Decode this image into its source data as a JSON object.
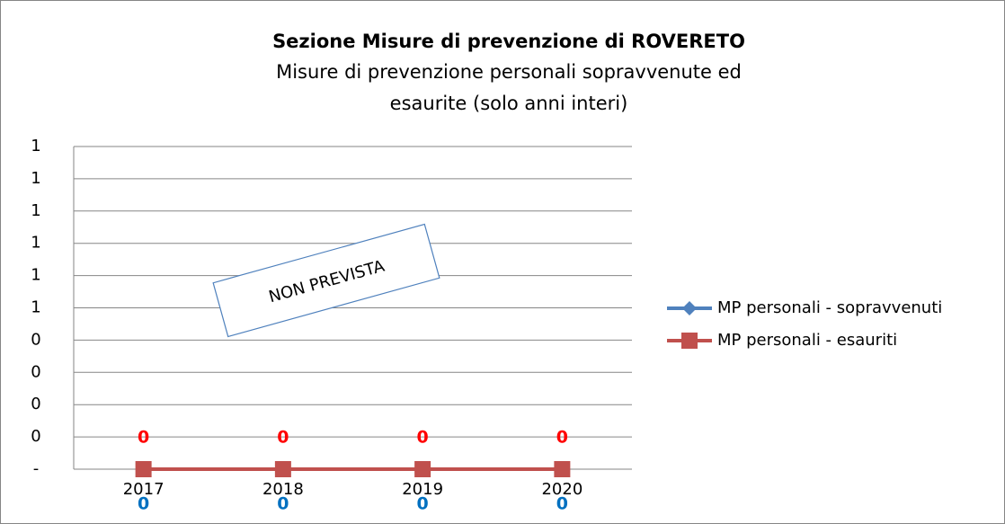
{
  "chart_data": {
    "type": "line",
    "title": "Sezione Misure di prevenzione di ROVERETO",
    "subtitle": [
      "Misure di prevenzione personali sopravvenute ed",
      "esaurite (solo anni interi)"
    ],
    "categories": [
      "2017",
      "2018",
      "2019",
      "2020"
    ],
    "series": [
      {
        "name": "MP personali - sopravvenuti",
        "color": "#4f81bd",
        "values": [
          0,
          0,
          0,
          0
        ]
      },
      {
        "name": "MP personali - esauriti",
        "color": "#c0504d",
        "values": [
          0,
          0,
          0,
          0
        ]
      }
    ],
    "ylim": [
      0,
      1
    ],
    "yticks": [
      {
        "value": 0,
        "label": "-"
      },
      {
        "value": 0.1,
        "label": "0"
      },
      {
        "value": 0.2,
        "label": "0"
      },
      {
        "value": 0.3,
        "label": "0"
      },
      {
        "value": 0.4,
        "label": "0"
      },
      {
        "value": 0.5,
        "label": "1"
      },
      {
        "value": 0.6,
        "label": "1"
      },
      {
        "value": 0.7,
        "label": "1"
      },
      {
        "value": 0.8,
        "label": "1"
      },
      {
        "value": 0.9,
        "label": "1"
      },
      1
    ],
    "grid": true,
    "legend": "right",
    "annotation": "NON PREVISTA"
  }
}
